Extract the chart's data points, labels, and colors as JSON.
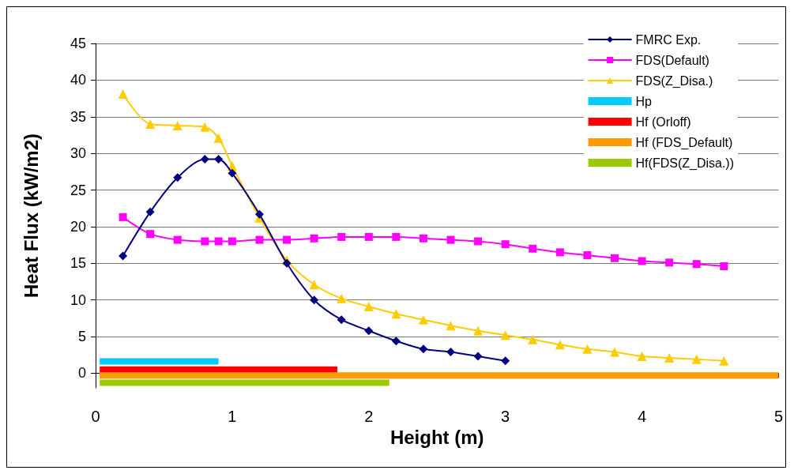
{
  "chart_data": {
    "type": "line",
    "xlabel": "Height (m)",
    "ylabel": "Heat Flux (kW/m2)",
    "xlim": [
      0,
      5
    ],
    "xticks": [
      0,
      1,
      2,
      3,
      4,
      5
    ],
    "ylim": [
      -2,
      45
    ],
    "yticks": [
      0,
      5,
      10,
      15,
      20,
      25,
      30,
      35,
      40,
      45
    ],
    "grid": "y",
    "legend": "top right",
    "series": [
      {
        "name": "FMRC Exp.",
        "color": "#000080",
        "marker": "diamond",
        "x": [
          0.2,
          0.4,
          0.6,
          0.8,
          0.9,
          1.0,
          1.2,
          1.4,
          1.6,
          1.8,
          2.0,
          2.2,
          2.4,
          2.6,
          2.8,
          3.0
        ],
        "values": [
          16,
          22,
          26.7,
          29.2,
          29.2,
          27.3,
          21.7,
          15,
          10,
          7.3,
          5.8,
          4.4,
          3.3,
          2.9,
          2.3,
          1.7
        ]
      },
      {
        "name": "FDS(Default)",
        "color": "#ff00ff",
        "marker": "square",
        "x": [
          0.2,
          0.4,
          0.6,
          0.8,
          0.9,
          1.0,
          1.2,
          1.4,
          1.6,
          1.8,
          2.0,
          2.2,
          2.4,
          2.6,
          2.8,
          3.0,
          3.2,
          3.4,
          3.6,
          3.8,
          4.0,
          4.2,
          4.4,
          4.6
        ],
        "values": [
          21.3,
          19,
          18.2,
          18,
          18,
          18,
          18.2,
          18.2,
          18.4,
          18.6,
          18.6,
          18.6,
          18.4,
          18.2,
          18,
          17.6,
          17,
          16.5,
          16.1,
          15.7,
          15.3,
          15.1,
          14.9,
          14.6
        ]
      },
      {
        "name": "FDS(Z_Disa.)",
        "color": "#ffcc00",
        "marker": "triangle",
        "x": [
          0.2,
          0.4,
          0.6,
          0.8,
          0.9,
          1.0,
          1.2,
          1.4,
          1.6,
          1.8,
          2.0,
          2.2,
          2.4,
          2.6,
          2.8,
          3.0,
          3.2,
          3.4,
          3.6,
          3.8,
          4.0,
          4.2,
          4.4,
          4.6
        ],
        "values": [
          38.1,
          34,
          33.8,
          33.6,
          32.1,
          28.3,
          21.2,
          15.4,
          12.1,
          10.2,
          9.1,
          8.1,
          7.3,
          6.5,
          5.8,
          5.2,
          4.6,
          3.9,
          3.3,
          2.9,
          2.3,
          2.1,
          1.9,
          1.7
        ]
      },
      {
        "name": "Hp",
        "color": "#00ccff",
        "marker": "none",
        "x": [
          0.03,
          0.9
        ],
        "values": [
          1.6,
          1.6
        ]
      },
      {
        "name": "Hf (Orloff)",
        "color": "#ff0000",
        "marker": "none",
        "x": [
          0.03,
          1.77
        ],
        "values": [
          0.5,
          0.5
        ]
      },
      {
        "name": "Hf (FDS_Default)",
        "color": "#ff9900",
        "marker": "none",
        "x": [
          0.03,
          5
        ],
        "values": [
          -0.3,
          -0.3
        ]
      },
      {
        "name": "Hf(FDS(Z_Disa.))",
        "color": "#99cc00",
        "marker": "none",
        "x": [
          0.03,
          2.15
        ],
        "values": [
          -1.3,
          -1.3
        ]
      }
    ]
  }
}
